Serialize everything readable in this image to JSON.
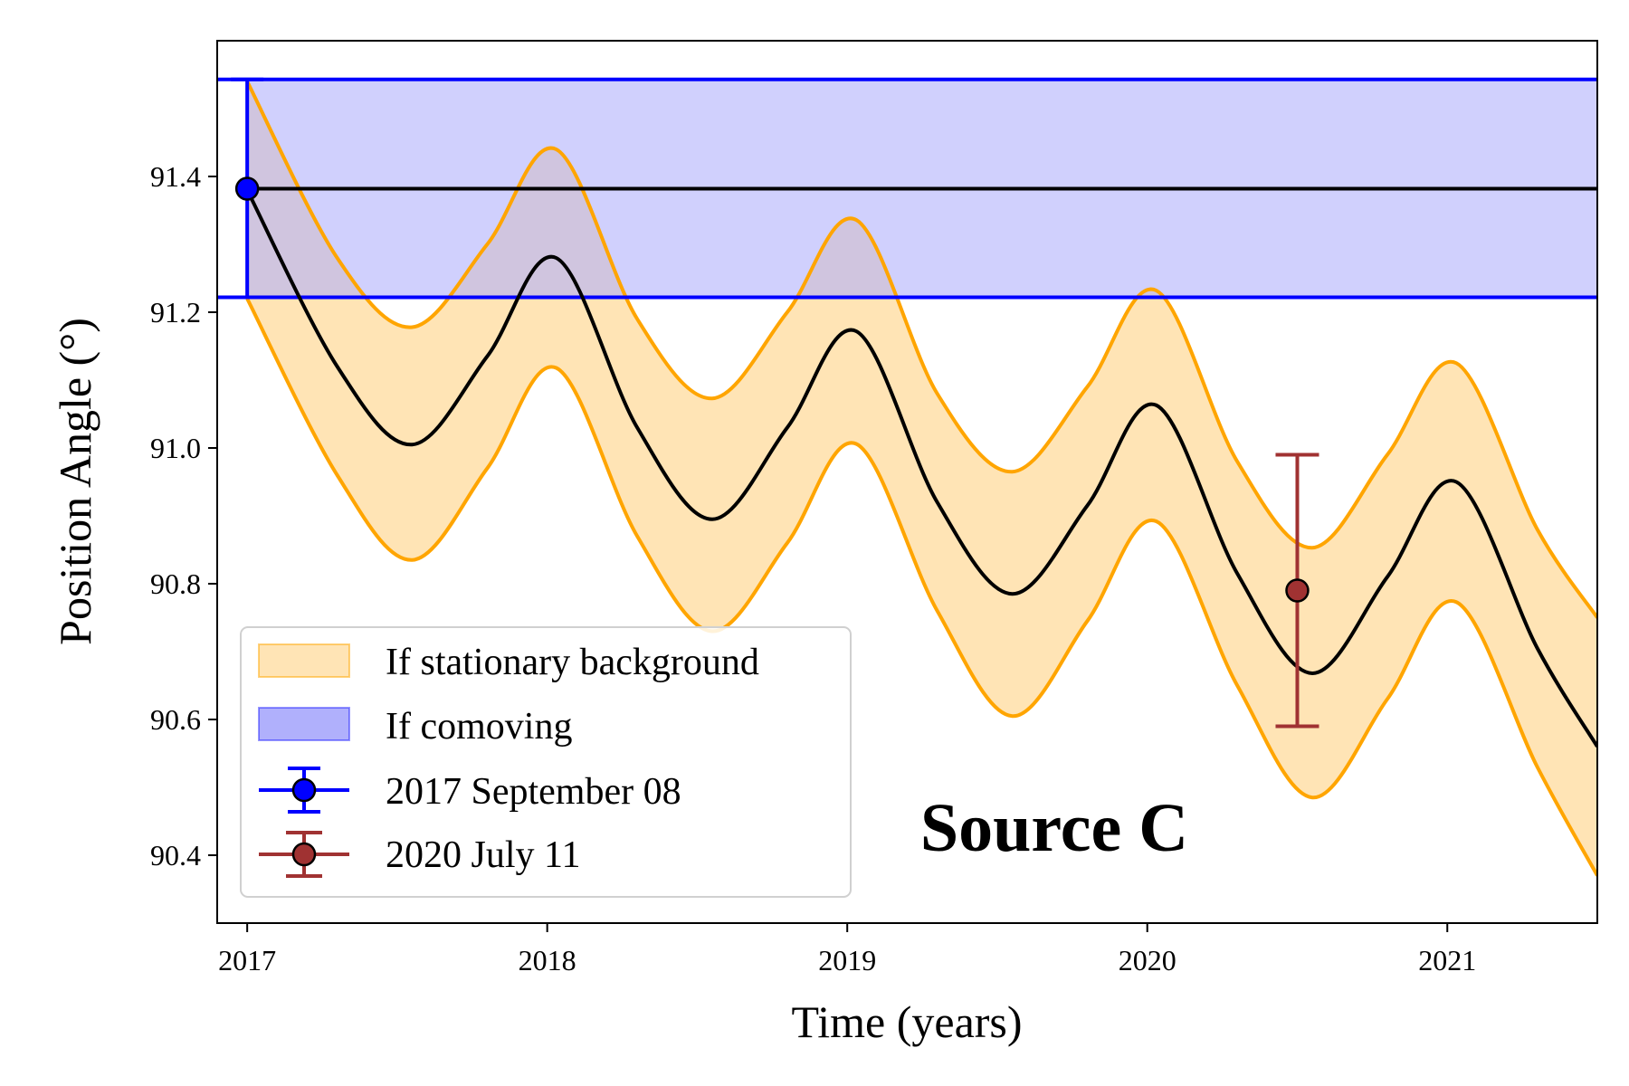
{
  "chart_data": {
    "type": "line",
    "title": "",
    "xlabel": "Time (years)",
    "ylabel": "Position Angle (°)",
    "xlim": [
      2016.9,
      2021.5
    ],
    "ylim": [
      90.3,
      91.6
    ],
    "xticks": [
      2017,
      2018,
      2019,
      2020,
      2021
    ],
    "yticks": [
      90.4,
      90.6,
      90.8,
      91.0,
      91.2,
      91.4
    ],
    "xtick_labels": [
      "2017",
      "2018",
      "2019",
      "2020",
      "2021"
    ],
    "ytick_labels": [
      "90.4",
      "90.6",
      "90.8",
      "91.0",
      "91.2",
      "91.4"
    ],
    "grid": false,
    "legend_position": "lower-left",
    "annotation": "Source C",
    "colors": {
      "stationary_fill": "#ffe4b5",
      "stationary_edge": "#ffa500",
      "comoving_fill": "#b0b0fc",
      "comoving_edge": "#0000ff",
      "track": "#000000",
      "point_2017": "#0000ff",
      "point_2020": "#a03232"
    },
    "series": [
      {
        "name": "If stationary background",
        "kind": "band",
        "x": [
          2017.0,
          2017.3,
          2017.55,
          2017.8,
          2018.03,
          2018.3,
          2018.55,
          2018.8,
          2019.03,
          2019.3,
          2019.55,
          2019.8,
          2020.03,
          2020.3,
          2020.55,
          2020.8,
          2021.03,
          2021.3,
          2021.5
        ],
        "lower": [
          91.22,
          90.96,
          90.835,
          90.97,
          91.118,
          90.87,
          90.73,
          90.86,
          91.006,
          90.76,
          90.605,
          90.745,
          90.892,
          90.65,
          90.485,
          90.63,
          90.773,
          90.53,
          90.37
        ],
        "upper": [
          91.54,
          91.28,
          91.178,
          91.3,
          91.44,
          91.19,
          91.073,
          91.2,
          91.336,
          91.08,
          90.965,
          91.09,
          91.232,
          90.98,
          90.853,
          90.99,
          91.125,
          90.88,
          90.75
        ]
      },
      {
        "name": "Stationary background track",
        "kind": "line",
        "x": [
          2017.0,
          2017.3,
          2017.55,
          2017.8,
          2018.03,
          2018.3,
          2018.55,
          2018.8,
          2019.03,
          2019.3,
          2019.55,
          2019.8,
          2020.03,
          2020.3,
          2020.55,
          2020.8,
          2021.03,
          2021.3,
          2021.5
        ],
        "values": [
          91.38,
          91.12,
          91.005,
          91.135,
          91.28,
          91.03,
          90.895,
          91.03,
          91.172,
          90.92,
          90.785,
          90.915,
          91.063,
          90.815,
          90.668,
          90.81,
          90.95,
          90.705,
          90.56
        ]
      },
      {
        "name": "If comoving",
        "kind": "band",
        "x": [
          2017.0,
          2021.5
        ],
        "lower": [
          91.222,
          91.222
        ],
        "upper": [
          91.543,
          91.543
        ],
        "center": 91.382
      },
      {
        "name": "2017 September 08",
        "kind": "errorbar",
        "x": 2017.0,
        "y": 91.382,
        "yerr_low": 91.222,
        "yerr_high": 91.543
      },
      {
        "name": "2020 July 11",
        "kind": "errorbar",
        "x": 2020.5,
        "y": 90.79,
        "yerr_low": 90.59,
        "yerr_high": 90.99
      }
    ],
    "legend": [
      {
        "label": "If stationary background",
        "marker": "fill-orange"
      },
      {
        "label": "If comoving",
        "marker": "fill-blue"
      },
      {
        "label": "2017 September 08",
        "marker": "errorbar-blue"
      },
      {
        "label": "2020 July 11",
        "marker": "errorbar-brown"
      }
    ]
  }
}
